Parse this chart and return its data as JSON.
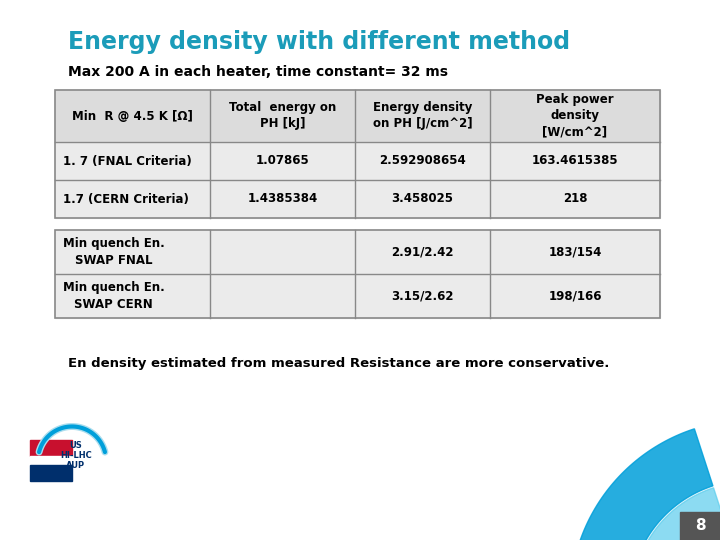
{
  "title": "Energy density with different method",
  "subtitle": "Max 200 A in each heater, time constant= 32 ms",
  "title_color": "#1B9CB9",
  "subtitle_color": "#000000",
  "background_color": "#FFFFFF",
  "table1_header": [
    "Min  R @ 4.5 K [Ω]",
    "Total  energy on\nPH [kJ]",
    "Energy density\non PH [J/cm^2]",
    "Peak power\ndensity\n[W/cm^2]"
  ],
  "table1_rows": [
    [
      "1. 7 (FNAL Criteria)",
      "1.07865",
      "2.592908654",
      "163.4615385"
    ],
    [
      "1.7 (CERN Criteria)",
      "1.4385384",
      "3.458025",
      "218"
    ]
  ],
  "table2_rows": [
    [
      "Min quench En.\nSWAP FNAL",
      "",
      "2.91/2.42",
      "183/154"
    ],
    [
      "Min quench En.\nSWAP CERN",
      "",
      "3.15/2.62",
      "198/166"
    ]
  ],
  "footer_text": "En density estimated from measured Resistance are more conservative.",
  "table_header_bg": "#DCDCDC",
  "table_row_bg": "#EBEBEB",
  "table_border_color": "#888888",
  "slide_number": "8",
  "accent_color": "#009FDA",
  "accent_dark": "#0077A8"
}
